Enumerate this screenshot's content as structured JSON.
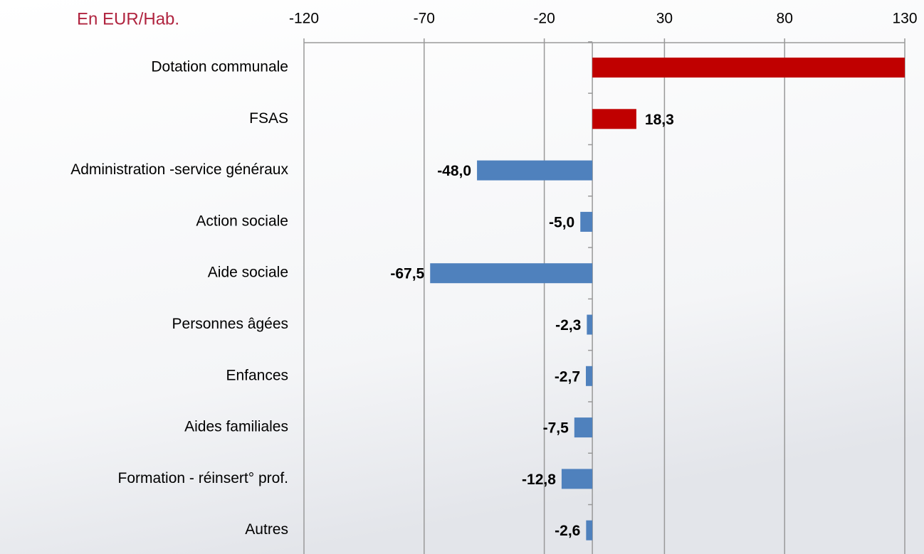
{
  "chart_data": {
    "type": "barh",
    "title": "En EUR/Hab.",
    "categories": [
      "Dotation communale",
      "FSAS",
      "Administration -service généraux",
      "Action sociale",
      "Aide sociale",
      "Personnes âgées",
      "Enfances",
      "Aides familiales",
      "Formation - réinsert° prof.",
      "Autres"
    ],
    "values": [
      130,
      18.3,
      -48.0,
      -5.0,
      -67.5,
      -2.3,
      -2.7,
      -7.5,
      -12.8,
      -2.6
    ],
    "value_labels": [
      null,
      "18,3",
      "-48,0",
      "-5,0",
      "-67,5",
      "-2,3",
      "-2,7",
      "-7,5",
      "-12,8",
      "-2,6"
    ],
    "colors": [
      "#c00000",
      "#c00000",
      "#4f81bd",
      "#4f81bd",
      "#4f81bd",
      "#4f81bd",
      "#4f81bd",
      "#4f81bd",
      "#4f81bd",
      "#4f81bd"
    ],
    "xlim": [
      -120,
      130
    ],
    "xticks": [
      -120,
      -70,
      -20,
      30,
      80,
      130
    ],
    "grid": true
  }
}
